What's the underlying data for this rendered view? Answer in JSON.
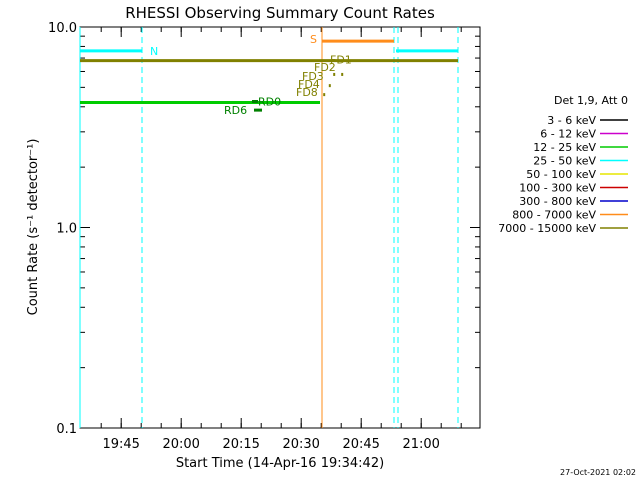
{
  "chart_data": {
    "type": "line",
    "title": "RHESSI Observing Summary Count Rates",
    "xlabel": "Start Time (14-Apr-16 19:34:42)",
    "ylabel": "Count Rate (s⁻¹ detector⁻¹)",
    "yscale": "log",
    "ylim": [
      0.1,
      10.0
    ],
    "xlim_minutes": [
      0,
      100
    ],
    "x_ticks": [
      {
        "label": "19:45",
        "minutes": 10.3
      },
      {
        "label": "20:00",
        "minutes": 25.3
      },
      {
        "label": "20:15",
        "minutes": 40.3
      },
      {
        "label": "20:30",
        "minutes": 55.3
      },
      {
        "label": "20:45",
        "minutes": 70.3
      },
      {
        "label": "21:00",
        "minutes": 85.3
      }
    ],
    "y_ticks": [
      {
        "label": "10.0",
        "value": 10.0
      },
      {
        "label": "1.0",
        "value": 1.0
      },
      {
        "label": "0.1",
        "value": 0.1
      }
    ],
    "legend_title": "Det 1,9, Att 0",
    "legend_placement": "right",
    "series": [
      {
        "name": "3 - 6 keV",
        "color": "#000000",
        "segments": []
      },
      {
        "name": "6 - 12 keV",
        "color": "#cc00cc",
        "segments": []
      },
      {
        "name": "12 - 25 keV",
        "color": "#00cc00",
        "segments": [
          [
            0,
            60,
            4.2
          ]
        ]
      },
      {
        "name": "25 - 50 keV",
        "color": "#00ffff",
        "segments": [
          [
            0,
            15.5,
            7.6
          ],
          [
            79,
            94.5,
            7.6
          ]
        ]
      },
      {
        "name": "50 - 100 keV",
        "color": "#e6e600",
        "segments": []
      },
      {
        "name": "100 - 300 keV",
        "color": "#cc0000",
        "segments": []
      },
      {
        "name": "300 - 800 keV",
        "color": "#0000cc",
        "segments": []
      },
      {
        "name": "800 - 7000 keV",
        "color": "#ff8c1a",
        "segments": [
          [
            60.5,
            78.5,
            8.5
          ]
        ]
      },
      {
        "name": "7000 - 15000 keV",
        "color": "#808000",
        "segments": [
          [
            0,
            94.5,
            6.8
          ]
        ]
      }
    ],
    "vertical_lines": [
      {
        "minutes": 0,
        "color": "#00ffff",
        "style": "solid"
      },
      {
        "minutes": 15.5,
        "color": "#00ffff",
        "style": "dashed"
      },
      {
        "minutes": 60.5,
        "color": "#ff8c1a",
        "style": "solid"
      },
      {
        "minutes": 78.5,
        "color": "#00ffff",
        "style": "dashed"
      },
      {
        "minutes": 79.5,
        "color": "#00ffff",
        "style": "dashed"
      },
      {
        "minutes": 94.5,
        "color": "#00ffff",
        "style": "dashed"
      }
    ],
    "annotations": [
      {
        "text": "N",
        "minutes": 17.5,
        "value": 7.6,
        "color": "#00ffff"
      },
      {
        "text": "S",
        "minutes": 57.5,
        "value": 8.7,
        "color": "#ff8c1a"
      },
      {
        "text": "FD1",
        "minutes": 62.5,
        "value": 6.9,
        "color": "#808000"
      },
      {
        "text": "FD2",
        "minutes": 58.5,
        "value": 6.3,
        "color": "#808000"
      },
      {
        "text": "FD3",
        "minutes": 55.5,
        "value": 5.7,
        "color": "#808000"
      },
      {
        "text": "FD4",
        "minutes": 54.5,
        "value": 5.2,
        "color": "#808000"
      },
      {
        "text": "FD8",
        "minutes": 54.0,
        "value": 4.75,
        "color": "#808000"
      },
      {
        "text": "RD0",
        "minutes": 44.5,
        "value": 4.25,
        "color": "#008000"
      },
      {
        "text": "RD6",
        "minutes": 36.0,
        "value": 3.85,
        "color": "#008000"
      }
    ],
    "markers": [
      {
        "minutes": 43.5,
        "minutes_end": 45.5,
        "value": 3.85,
        "color": "#008000"
      },
      {
        "minutes": 43.0,
        "minutes_end": 44.5,
        "value": 4.25,
        "color": "#008000"
      },
      {
        "minutes": 63.3,
        "minutes_end": 63.8,
        "value": 5.8,
        "color": "#808000"
      },
      {
        "minutes": 65.3,
        "minutes_end": 65.8,
        "value": 5.8,
        "color": "#808000"
      },
      {
        "minutes": 62.2,
        "minutes_end": 62.7,
        "value": 5.1,
        "color": "#808000"
      },
      {
        "minutes": 60.8,
        "minutes_end": 61.3,
        "value": 4.6,
        "color": "#808000"
      }
    ]
  },
  "footer": {
    "timestamp": "27-Oct-2021 02:02"
  }
}
